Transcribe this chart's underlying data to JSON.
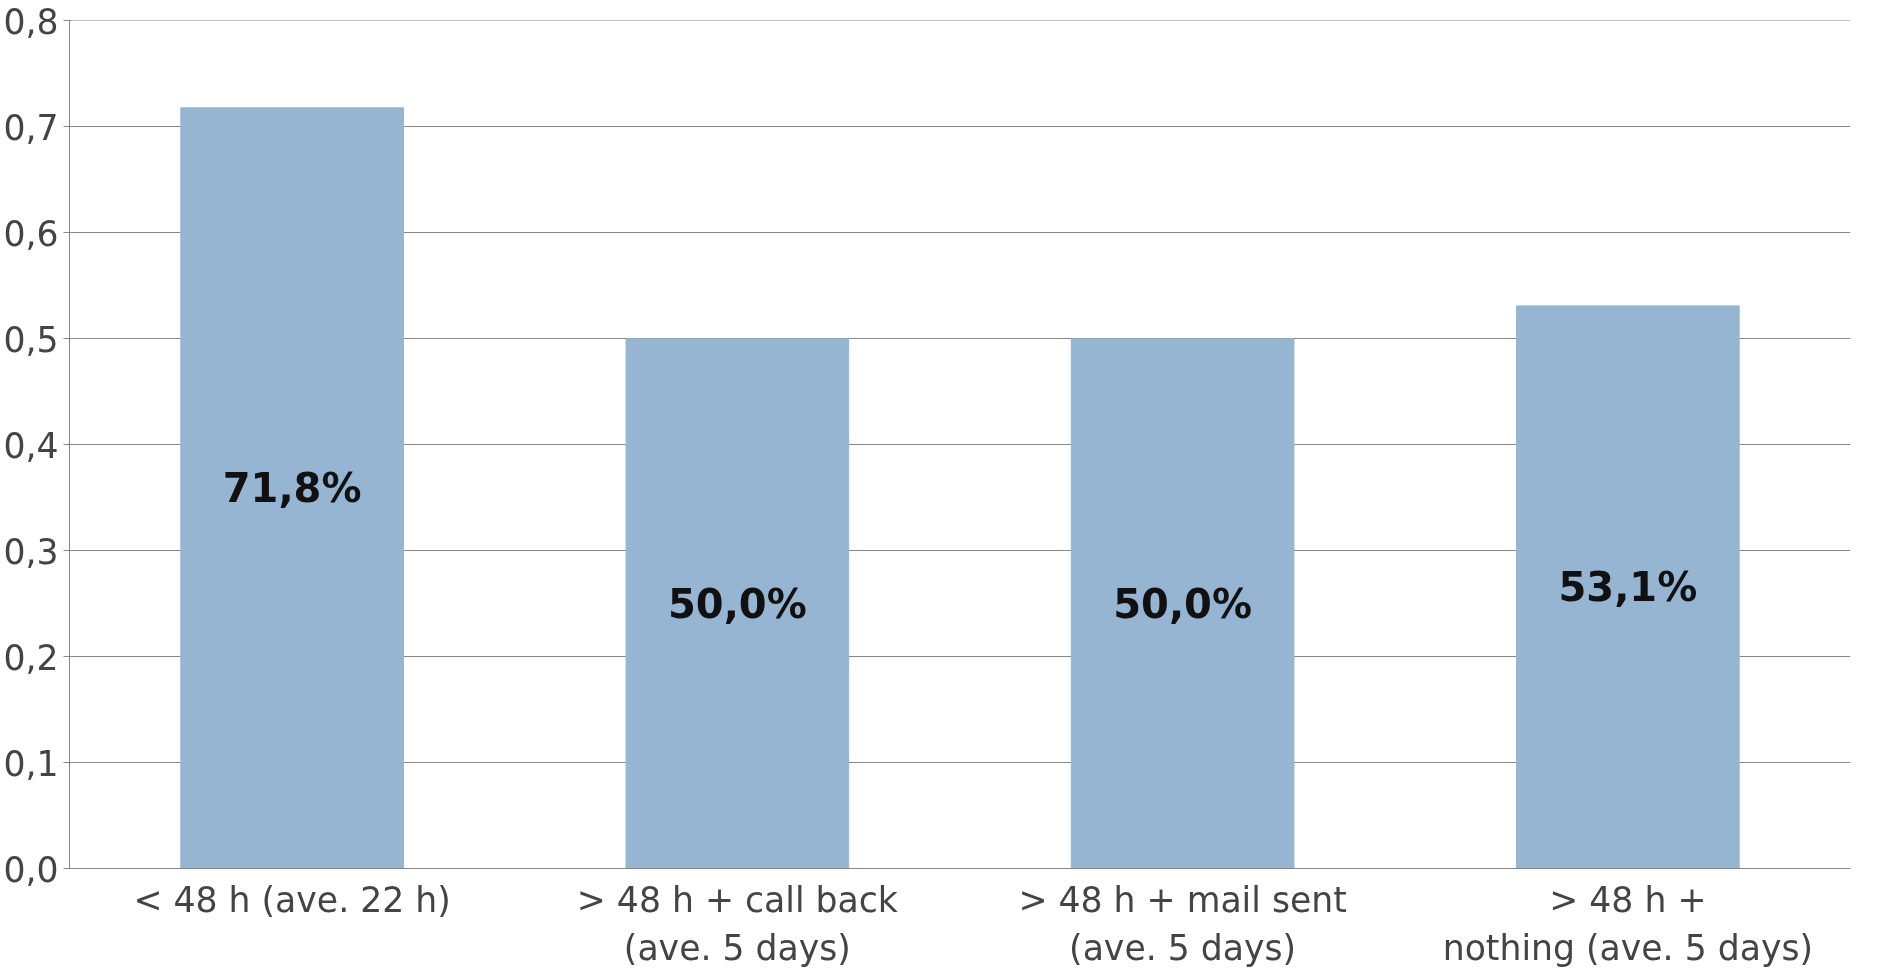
{
  "chart_data": {
    "type": "bar",
    "categories": [
      "< 48 h (ave. 22 h)",
      "> 48 h + call back\n(ave. 5 days)",
      "> 48 h + mail sent\n(ave. 5 days)",
      "> 48 h +\nnothing (ave. 5 days)"
    ],
    "values": [
      0.718,
      0.5,
      0.5,
      0.531
    ],
    "color": "#95b5d3",
    "value_labels": [
      "71,8%",
      "50,0%",
      "50,0%",
      "53,1%"
    ],
    "ylim": [
      0,
      0.8
    ],
    "yticks": [
      {
        "value": 0,
        "label": "0,0"
      },
      {
        "value": 0.1,
        "label": "0,1"
      },
      {
        "value": 0.2,
        "label": "0,2"
      },
      {
        "value": 0.3,
        "label": "0,3"
      },
      {
        "value": 0.4,
        "label": "0,4"
      },
      {
        "value": 0.5,
        "label": "0,5"
      },
      {
        "value": 0.6,
        "label": "0,6"
      },
      {
        "value": 0.7,
        "label": "0,7"
      },
      {
        "value": 0.8,
        "label": "0,8"
      }
    ],
    "grid": "y"
  }
}
